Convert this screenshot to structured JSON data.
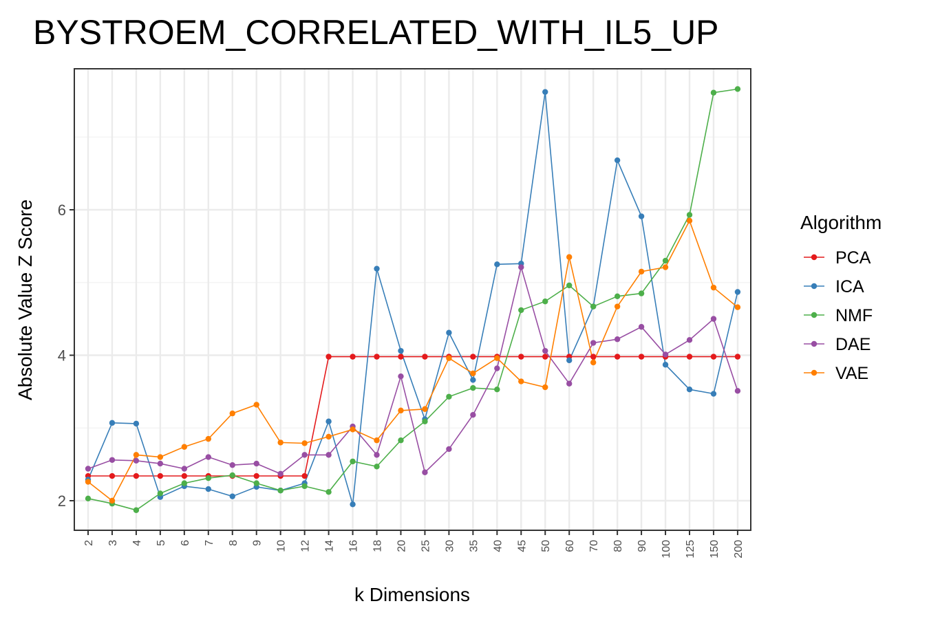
{
  "chart_data": {
    "type": "line",
    "title": "BYSTROEM_CORRELATED_WITH_IL5_UP",
    "xlabel": "k Dimensions",
    "ylabel": "Absolute Value Z Score",
    "categories": [
      "2",
      "3",
      "4",
      "5",
      "6",
      "7",
      "8",
      "9",
      "10",
      "12",
      "14",
      "16",
      "18",
      "20",
      "25",
      "30",
      "35",
      "40",
      "45",
      "50",
      "60",
      "70",
      "80",
      "90",
      "100",
      "125",
      "150",
      "200"
    ],
    "yticks": [
      2,
      4,
      6
    ],
    "ylim": [
      1.6,
      7.95
    ],
    "grid": true,
    "legend": {
      "title": "Algorithm",
      "placement": "right"
    },
    "series": [
      {
        "name": "PCA",
        "color": "#e41a1c",
        "values": [
          2.34,
          2.34,
          2.34,
          2.34,
          2.34,
          2.34,
          2.34,
          2.34,
          2.34,
          2.34,
          3.98,
          3.98,
          3.98,
          3.98,
          3.98,
          3.98,
          3.98,
          3.98,
          3.98,
          3.98,
          3.98,
          3.98,
          3.98,
          3.98,
          3.98,
          3.98,
          3.98,
          3.98
        ]
      },
      {
        "name": "ICA",
        "color": "#377eb8",
        "values": [
          2.29,
          3.07,
          3.06,
          2.05,
          2.2,
          2.16,
          2.06,
          2.19,
          2.14,
          2.24,
          3.09,
          1.95,
          5.19,
          4.06,
          3.12,
          4.31,
          3.66,
          5.25,
          5.26,
          7.62,
          3.93,
          4.67,
          6.68,
          5.91,
          3.87,
          3.53,
          3.47,
          4.87
        ]
      },
      {
        "name": "NMF",
        "color": "#4daf4a",
        "values": [
          2.03,
          1.96,
          1.87,
          2.1,
          2.24,
          2.31,
          2.35,
          2.24,
          2.14,
          2.2,
          2.12,
          2.54,
          2.47,
          2.83,
          3.09,
          3.43,
          3.55,
          3.53,
          4.62,
          4.74,
          4.96,
          4.67,
          4.81,
          4.85,
          5.3,
          5.93,
          7.61,
          7.66
        ]
      },
      {
        "name": "DAE",
        "color": "#984ea3",
        "values": [
          2.44,
          2.56,
          2.55,
          2.51,
          2.44,
          2.6,
          2.49,
          2.51,
          2.37,
          2.63,
          2.63,
          3.02,
          2.63,
          3.71,
          2.39,
          2.71,
          3.18,
          3.82,
          5.21,
          4.06,
          3.61,
          4.17,
          4.22,
          4.39,
          4.01,
          4.21,
          4.5,
          3.51
        ]
      },
      {
        "name": "VAE",
        "color": "#ff7f00",
        "values": [
          2.26,
          2.0,
          2.63,
          2.6,
          2.74,
          2.85,
          3.2,
          3.32,
          2.8,
          2.79,
          2.88,
          2.98,
          2.83,
          3.24,
          3.26,
          3.96,
          3.75,
          3.96,
          3.64,
          3.56,
          5.35,
          3.9,
          4.67,
          5.15,
          5.21,
          5.85,
          4.93,
          4.66
        ]
      }
    ]
  }
}
